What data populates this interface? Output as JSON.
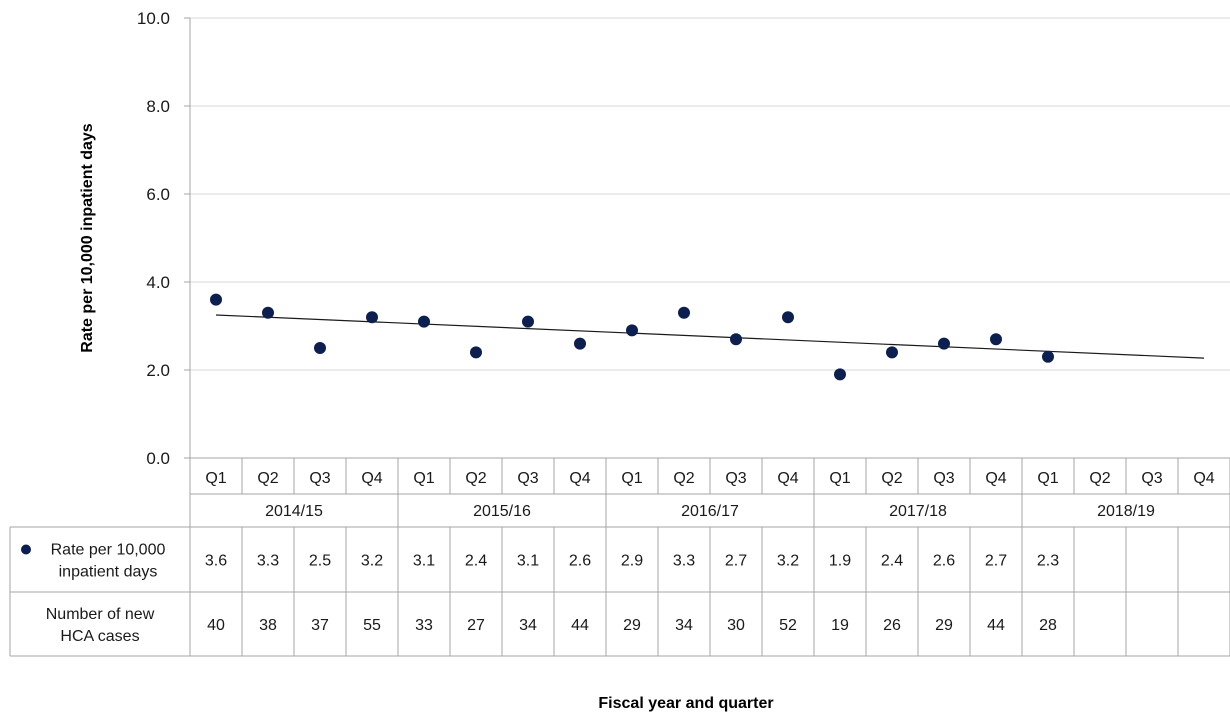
{
  "chart_data": {
    "type": "scatter",
    "title": "",
    "xlabel": "Fiscal year and quarter",
    "ylabel": "Rate per 10,000 inpatient days",
    "ylim": [
      0,
      10
    ],
    "y_ticks": [
      "0.0",
      "2.0",
      "4.0",
      "6.0",
      "8.0",
      "10.0"
    ],
    "grid": true,
    "years": [
      "2014/15",
      "2015/16",
      "2016/17",
      "2017/18",
      "2018/19"
    ],
    "quarters": [
      "Q1",
      "Q2",
      "Q3",
      "Q4",
      "Q1",
      "Q2",
      "Q3",
      "Q4",
      "Q1",
      "Q2",
      "Q3",
      "Q4",
      "Q1",
      "Q2",
      "Q3",
      "Q4",
      "Q1",
      "Q2",
      "Q3",
      "Q4"
    ],
    "series": [
      {
        "name": "Rate per 10,000 inpatient days",
        "color": "#0d1f4f",
        "values": [
          3.6,
          3.3,
          2.5,
          3.2,
          3.1,
          2.4,
          3.1,
          2.6,
          2.9,
          3.3,
          2.7,
          3.2,
          1.9,
          2.4,
          2.6,
          2.7,
          2.3,
          null,
          null,
          null
        ]
      }
    ],
    "trendline": {
      "start": 3.25,
      "end": 2.27
    },
    "table_rows": [
      {
        "label_line1": "Rate per 10,000",
        "label_line2": "inpatient days",
        "has_marker": true,
        "values": [
          "3.6",
          "3.3",
          "2.5",
          "3.2",
          "3.1",
          "2.4",
          "3.1",
          "2.6",
          "2.9",
          "3.3",
          "2.7",
          "3.2",
          "1.9",
          "2.4",
          "2.6",
          "2.7",
          "2.3",
          "",
          "",
          ""
        ]
      },
      {
        "label_line1": "Number of new",
        "label_line2": "HCA cases",
        "has_marker": false,
        "values": [
          "40",
          "38",
          "37",
          "55",
          "33",
          "27",
          "34",
          "44",
          "29",
          "34",
          "30",
          "52",
          "19",
          "26",
          "29",
          "44",
          "28",
          "",
          "",
          ""
        ]
      }
    ]
  }
}
